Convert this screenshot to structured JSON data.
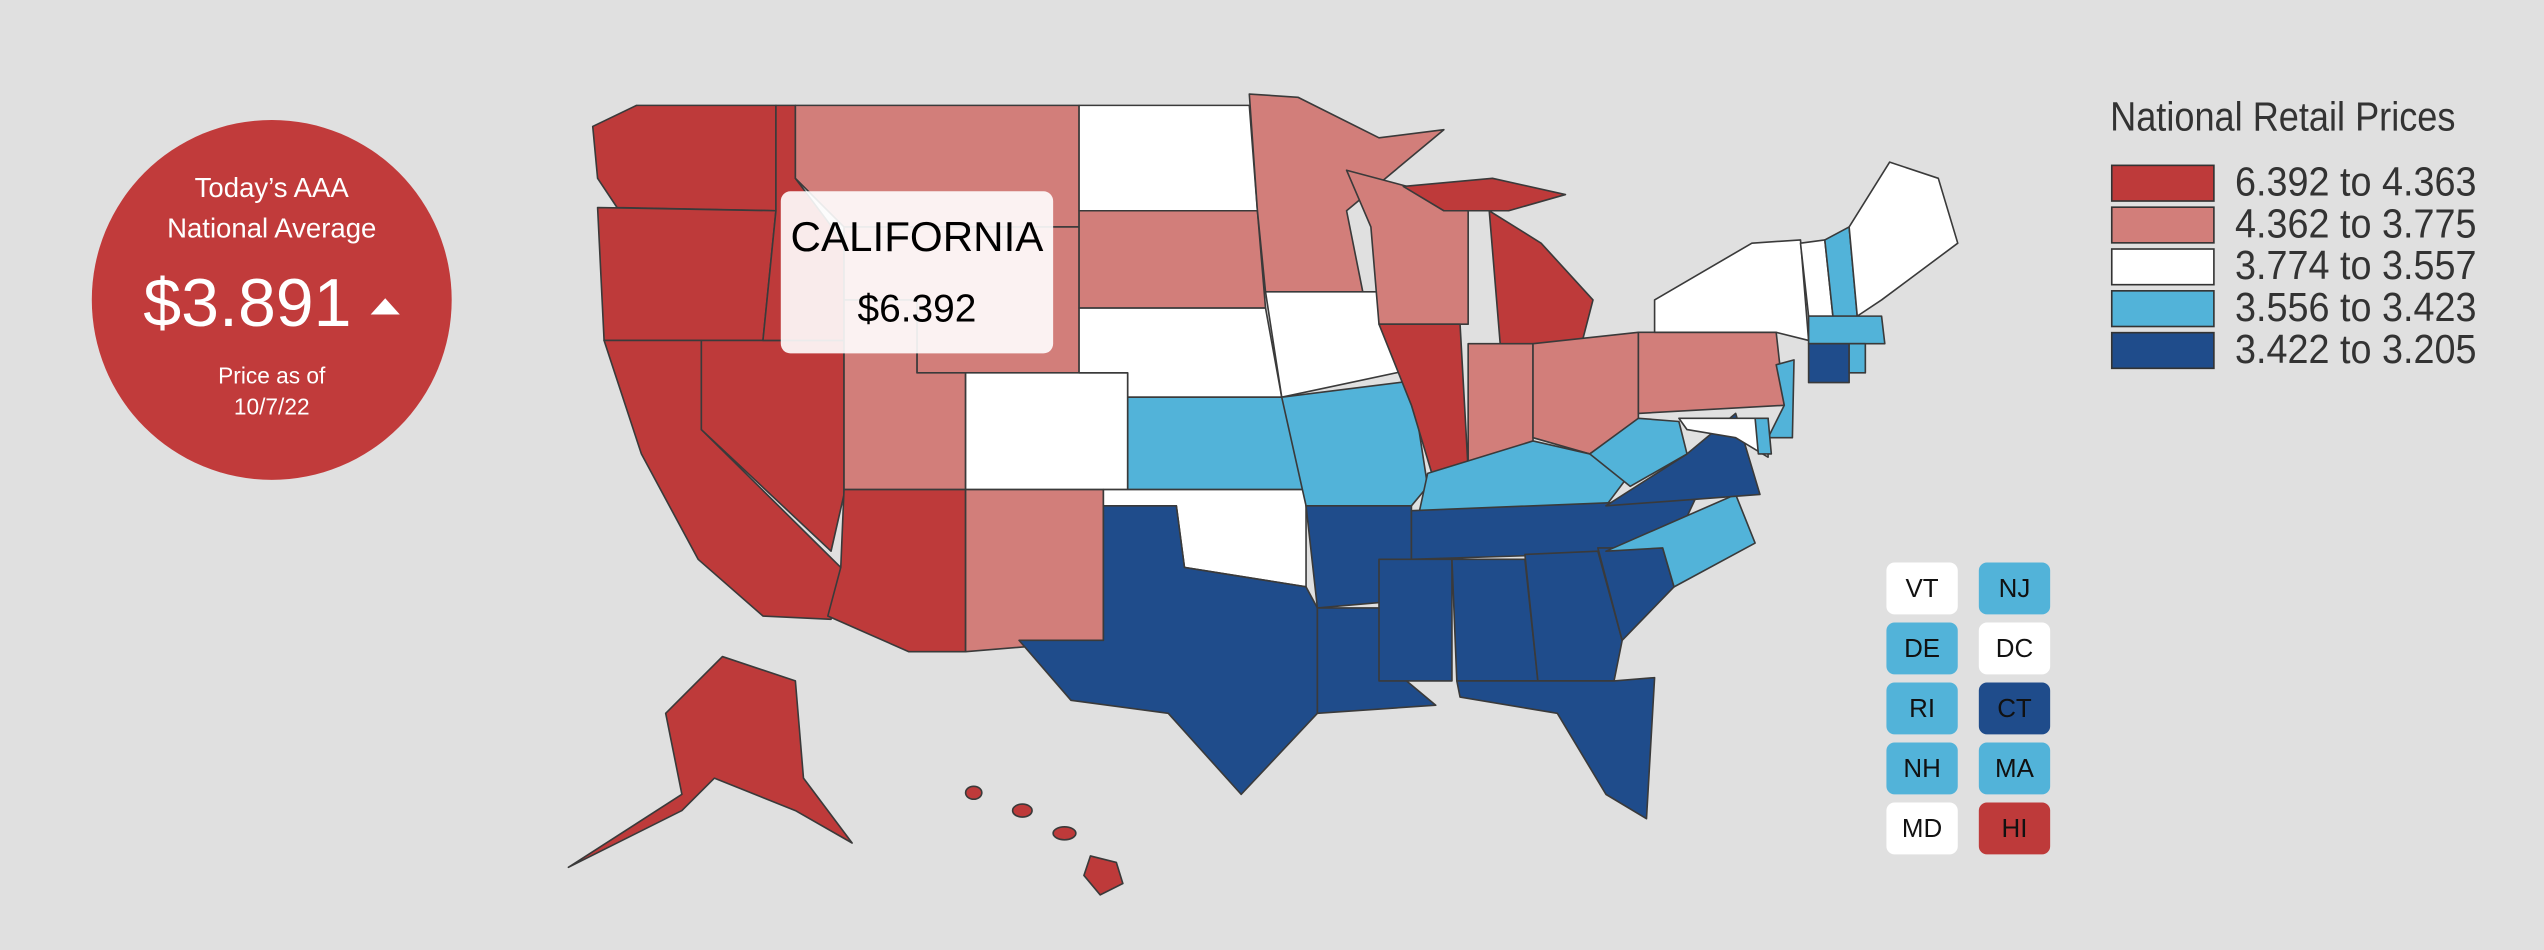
{
  "badge": {
    "line1": "Today’s AAA",
    "line2": "National Average",
    "price": "$3.891",
    "date_label": "Price as of",
    "date": "10/7/22"
  },
  "tooltip": {
    "state": "CALIFORNIA",
    "price": "$6.392"
  },
  "legend": {
    "title": "National Retail Prices",
    "bins": [
      {
        "label": "6.392 to 4.363",
        "color": "#be3a3a"
      },
      {
        "label": "4.362 to 3.775",
        "color": "#d27e7a"
      },
      {
        "label": "3.774 to 3.557",
        "color": "#ffffff"
      },
      {
        "label": "3.556 to 3.423",
        "color": "#52b3d9"
      },
      {
        "label": "3.422 to 3.205",
        "color": "#1f4c8b"
      }
    ]
  },
  "small_states": [
    {
      "label": "VT",
      "bin": 2
    },
    {
      "label": "NJ",
      "bin": 3
    },
    {
      "label": "DE",
      "bin": 3
    },
    {
      "label": "DC",
      "bin": 2
    },
    {
      "label": "RI",
      "bin": 3
    },
    {
      "label": "CT",
      "bin": 4
    },
    {
      "label": "NH",
      "bin": 3
    },
    {
      "label": "MA",
      "bin": 3
    },
    {
      "label": "MD",
      "bin": 2
    },
    {
      "label": "HI",
      "bin": 0
    }
  ]
}
